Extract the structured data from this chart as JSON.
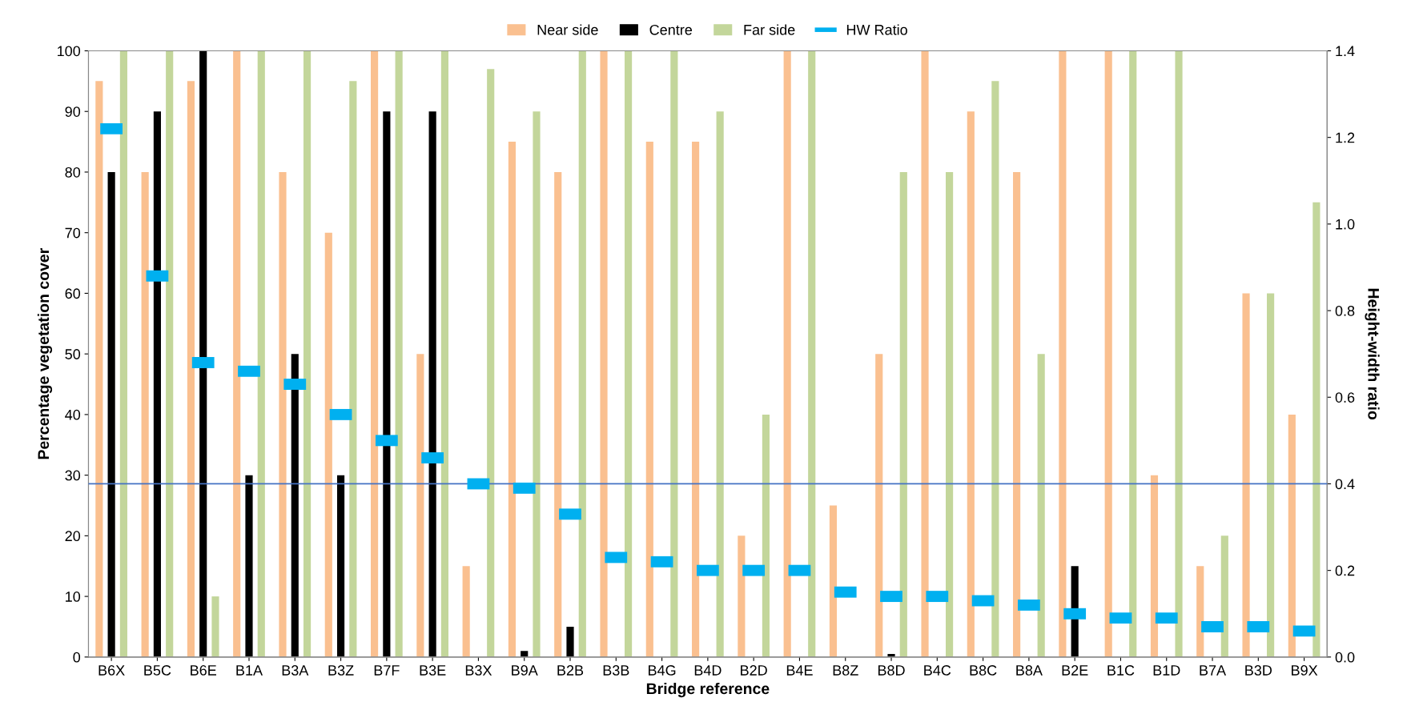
{
  "chart_data": {
    "type": "bar",
    "xlabel": "Bridge reference",
    "ylabel": "Percentage vegetation cover",
    "y2label": "Height-width ratio",
    "categories": [
      "B6X",
      "B5C",
      "B6E",
      "B1A",
      "B3A",
      "B3Z",
      "B7F",
      "B3E",
      "B3X",
      "B9A",
      "B2B",
      "B3B",
      "B4G",
      "B4D",
      "B2D",
      "B4E",
      "B8Z",
      "B8D",
      "B4C",
      "B8C",
      "B8A",
      "B2E",
      "B1C",
      "B1D",
      "B7A",
      "B3D",
      "B9X"
    ],
    "series": [
      {
        "name": "Near side",
        "color": "#fac090",
        "values": [
          95,
          80,
          95,
          100,
          80,
          70,
          100,
          50,
          15,
          85,
          80,
          100,
          85,
          85,
          20,
          100,
          25,
          50,
          100,
          90,
          80,
          100,
          100,
          30,
          15,
          60,
          40
        ]
      },
      {
        "name": "Centre",
        "color": "#000000",
        "values": [
          80,
          90,
          100,
          30,
          50,
          30,
          90,
          90,
          0,
          1,
          5,
          0,
          0,
          0,
          0,
          0,
          0,
          0.5,
          0,
          0,
          0,
          15,
          0,
          0,
          0,
          0,
          0
        ]
      },
      {
        "name": "Far side",
        "color": "#c3d69b",
        "values": [
          100,
          100,
          10,
          100,
          100,
          95,
          100,
          100,
          97,
          90,
          100,
          100,
          100,
          90,
          40,
          100,
          0,
          80,
          80,
          95,
          50,
          0,
          100,
          100,
          20,
          60,
          75
        ]
      },
      {
        "name": "HW Ratio",
        "color": "#00b0f0",
        "type": "scatter",
        "marker": "square",
        "axis": "y2",
        "values": [
          1.22,
          0.88,
          0.68,
          0.66,
          0.63,
          0.56,
          0.5,
          0.46,
          0.4,
          0.39,
          0.33,
          0.23,
          0.22,
          0.2,
          0.2,
          0.2,
          0.15,
          0.14,
          0.14,
          0.13,
          0.12,
          0.1,
          0.09,
          0.09,
          0.07,
          0.07,
          0.06
        ]
      }
    ],
    "ylim": [
      0,
      100
    ],
    "yticks": [
      0,
      10,
      20,
      30,
      40,
      50,
      60,
      70,
      80,
      90,
      100
    ],
    "y2lim": [
      0,
      1.4
    ],
    "y2ticks": [
      {
        "value": 0,
        "label": "0.0"
      },
      {
        "value": 0.2,
        "label": "0.2"
      },
      {
        "value": 0.4,
        "label": "0.4"
      },
      {
        "value": 0.6,
        "label": "0.6"
      },
      {
        "value": 0.8,
        "label": "0.8"
      },
      {
        "value": 1.0,
        "label": "1.0"
      },
      {
        "value": 1.2,
        "label": "1.2"
      },
      {
        "value": 1.4,
        "label": "1.4"
      }
    ],
    "ref_lines": [
      {
        "axis": "y2",
        "value": 0.4,
        "color": "#4472c4",
        "line_style": "solid"
      }
    ],
    "grid": false,
    "legend": "top"
  }
}
